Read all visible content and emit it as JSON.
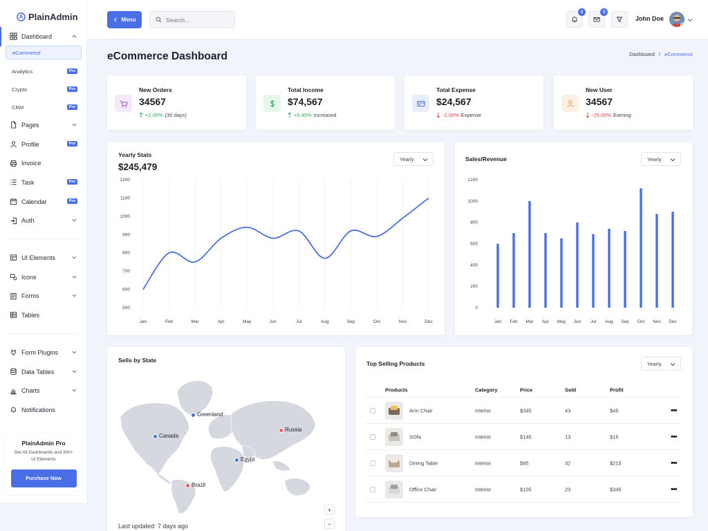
{
  "app": {
    "brand": "PlainAdmin"
  },
  "sidebar": {
    "dashboard": {
      "label": "Dashboard",
      "sub": [
        {
          "label": "eCommerce",
          "pro": ""
        },
        {
          "label": "Analytics",
          "pro": "Pro"
        },
        {
          "label": "Crypto",
          "pro": "Pro"
        },
        {
          "label": "CRM",
          "pro": "Pro"
        }
      ]
    },
    "group1": [
      {
        "label": "Pages",
        "icon": "file-icon",
        "chevron": true,
        "pro": ""
      },
      {
        "label": "Profile",
        "icon": "user-icon",
        "chevron": false,
        "pro": "Pro"
      },
      {
        "label": "Invoice",
        "icon": "printer-icon",
        "chevron": false,
        "pro": ""
      },
      {
        "label": "Task",
        "icon": "list-icon",
        "chevron": false,
        "pro": "Pro"
      },
      {
        "label": "Calendar",
        "icon": "calendar-icon",
        "chevron": false,
        "pro": "Pro"
      },
      {
        "label": "Auth",
        "icon": "login-icon",
        "chevron": true,
        "pro": ""
      }
    ],
    "group2": [
      {
        "label": "UI Elements",
        "icon": "layout-icon",
        "chevron": true
      },
      {
        "label": "Icons",
        "icon": "shapes-icon",
        "chevron": true
      },
      {
        "label": "Forms",
        "icon": "form-icon",
        "chevron": true
      },
      {
        "label": "Tables",
        "icon": "table-icon",
        "chevron": false
      }
    ],
    "group3": [
      {
        "label": "Form Plugins",
        "icon": "plug-icon",
        "chevron": true
      },
      {
        "label": "Data Tables",
        "icon": "database-icon",
        "chevron": true
      },
      {
        "label": "Charts",
        "icon": "bar-chart-icon",
        "chevron": true
      },
      {
        "label": "Notifications",
        "icon": "bell-icon",
        "chevron": false
      }
    ],
    "promo": {
      "title": "PlainAdmin Pro",
      "text": "Get All Dashboards and 300+ UI Elements",
      "button": "Purchase Now"
    }
  },
  "topbar": {
    "menu_label": "Menu",
    "search_placeholder": "Search...",
    "notifications_count": "2",
    "messages_count": "3",
    "user_name": "John Doe"
  },
  "page": {
    "title": "eCommerce Dashboard",
    "breadcrumb": [
      "Dashboard",
      "/",
      "eCommerce"
    ]
  },
  "stats": [
    {
      "label": "New Orders",
      "value": "34567",
      "change": "+2.00%",
      "note": "(30 days)",
      "dir": "up",
      "icon": "cart-icon",
      "bg": "#f3e9fb",
      "fg": "#9b59d0"
    },
    {
      "label": "Total Income",
      "value": "$74,567",
      "change": "+5.45%",
      "note": "Increased",
      "dir": "up",
      "icon": "dollar-icon",
      "bg": "#e6f6ec",
      "fg": "#2eaa5a"
    },
    {
      "label": "Total Expense",
      "value": "$24,567",
      "change": "-2.00%",
      "note": "Expense",
      "dir": "down",
      "icon": "credit-card-icon",
      "bg": "#e9eefc",
      "fg": "#4a6ee6"
    },
    {
      "label": "New User",
      "value": "34567",
      "change": "-25.00%",
      "note": "Earning",
      "dir": "down",
      "icon": "user-icon",
      "bg": "#fdf0e4",
      "fg": "#f0a05a"
    }
  ],
  "yearly": {
    "title": "Yearly Stats",
    "amount": "$245,479",
    "dropdown": "Yearly"
  },
  "sales": {
    "title": "Sales/Revenue",
    "dropdown": "Yearly"
  },
  "chart_data": [
    {
      "type": "line",
      "title": "Yearly Stats",
      "categories": [
        "Jan",
        "Feb",
        "Mar",
        "Apr",
        "May",
        "Jun",
        "Jul",
        "Aug",
        "Sep",
        "Oct",
        "Nov",
        "Dec"
      ],
      "values": [
        600,
        800,
        750,
        880,
        940,
        880,
        920,
        770,
        920,
        890,
        990,
        1100
      ],
      "yticks": [
        "1200",
        "1100",
        "1000",
        "900",
        "800",
        "700",
        "600",
        "500"
      ],
      "ylim": [
        500,
        1200
      ],
      "grid": "vertical"
    },
    {
      "type": "bar",
      "title": "Sales/Revenue",
      "categories": [
        "Jan",
        "Feb",
        "Mar",
        "Apr",
        "May",
        "Jun",
        "Jul",
        "Aug",
        "Sep",
        "Oct",
        "Nov",
        "Dec"
      ],
      "values": [
        600,
        700,
        1000,
        700,
        650,
        800,
        690,
        740,
        720,
        1120,
        880,
        900
      ],
      "yticks": [
        "1200",
        "1000",
        "800",
        "600",
        "400",
        "200",
        "0"
      ],
      "ylim": [
        0,
        1200
      ]
    }
  ],
  "map": {
    "title": "Sells by State",
    "updated": "Last updated: 7 days ago",
    "markers": [
      {
        "label": "Greenland",
        "color": "#4a6ee6"
      },
      {
        "label": "Russia",
        "color": "#ee5a5a"
      },
      {
        "label": "Canada",
        "color": "#4a6ee6"
      },
      {
        "label": "Egypt",
        "color": "#4a6ee6"
      },
      {
        "label": "Brazil",
        "color": "#ee5a5a"
      }
    ],
    "zoom_in": "+",
    "zoom_out": "−"
  },
  "products": {
    "title": "Top Selling Products",
    "dropdown": "Yearly",
    "columns": [
      "Products",
      "Category",
      "Price",
      "Sold",
      "Profit"
    ],
    "rows": [
      {
        "name": "Arm Chair",
        "category": "Interior",
        "price": "$345",
        "sold": "43",
        "profit": "$45"
      },
      {
        "name": "SOfa",
        "category": "Interior",
        "price": "$145",
        "sold": "13",
        "profit": "$15"
      },
      {
        "name": "Dining Table",
        "category": "Interior",
        "price": "$95",
        "sold": "32",
        "profit": "$215"
      },
      {
        "name": "Office Chair",
        "category": "Interior",
        "price": "$105",
        "sold": "23",
        "profit": "$345"
      }
    ]
  }
}
